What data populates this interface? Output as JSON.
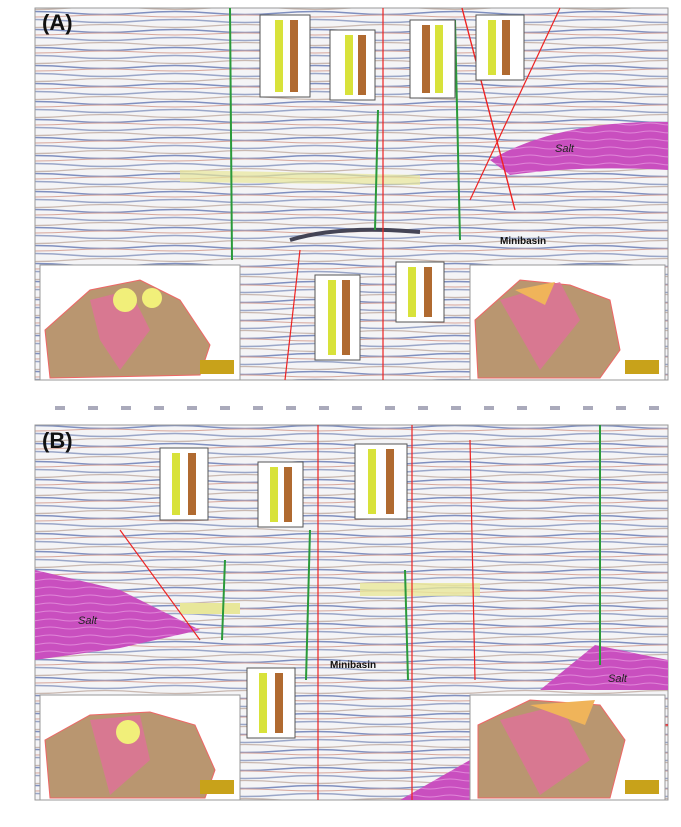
{
  "panels": [
    {
      "label": "(A)",
      "salt_labels": [
        "Salt"
      ],
      "basin_label": "Minibasin"
    },
    {
      "label": "(B)",
      "salt_labels": [
        "Salt",
        "Salt"
      ],
      "basin_label": "Minibasin"
    }
  ]
}
